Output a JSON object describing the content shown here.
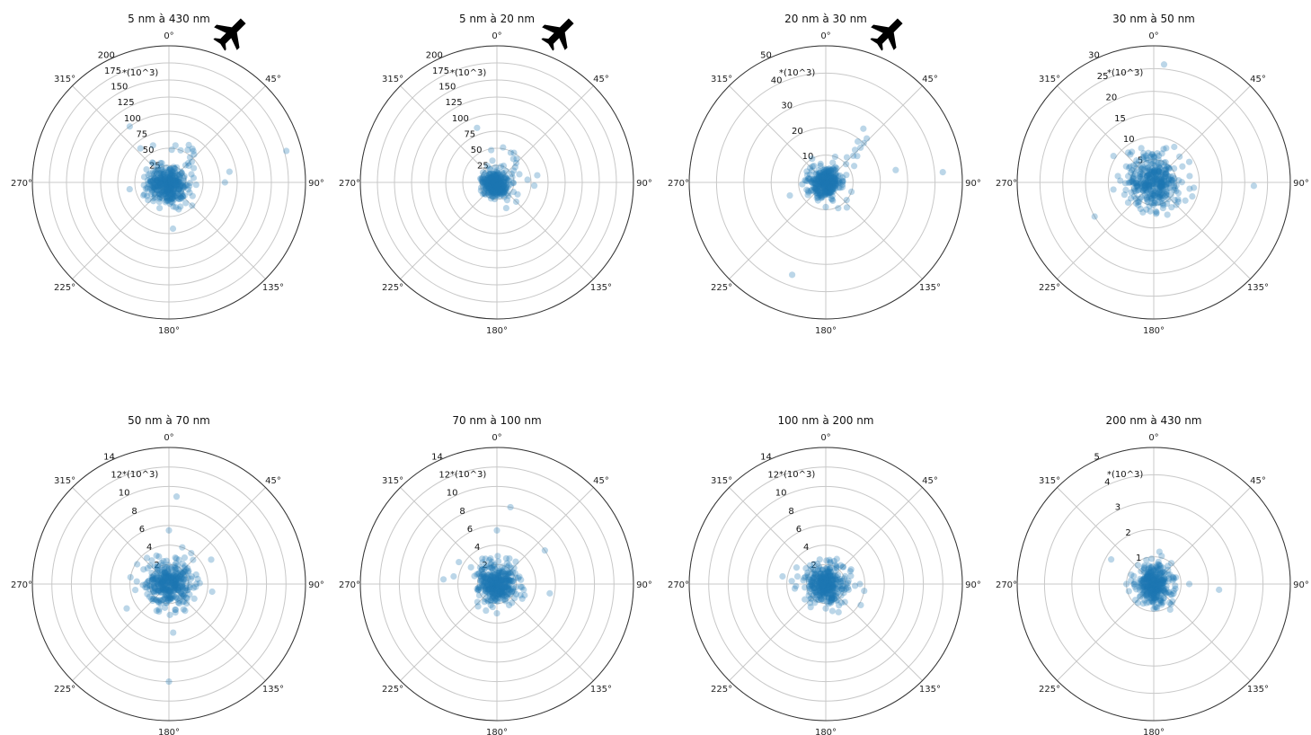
{
  "figure": {
    "subplot_count": 8
  },
  "icons": [
    {
      "name": "airplane-icon",
      "panel": 0
    },
    {
      "name": "airplane-icon",
      "panel": 1
    },
    {
      "name": "airplane-icon",
      "panel": 2
    }
  ],
  "colors": {
    "points": "#1f77b4",
    "grid": "#c8c8c8",
    "frame": "#333333",
    "icon": "#000000"
  },
  "chart_data": [
    {
      "type": "scatter",
      "projection": "polar",
      "title": "5 nm à 430 nm",
      "multiplier_label": "*(10^3)",
      "theta_tick_labels": [
        "0°",
        "45°",
        "90°",
        "135°",
        "180°",
        "225°",
        "270°",
        "315°"
      ],
      "r_ticks": [
        25,
        50,
        75,
        100,
        125,
        150,
        175,
        200
      ],
      "rlim": [
        0,
        200
      ],
      "grid": true,
      "point_alpha": 0.3,
      "cluster": {
        "center_theta_deg": 210,
        "center_r": 4,
        "spread_r": 25
      },
      "series": [
        {
          "points": [
            {
              "theta": 45,
              "r": 40
            },
            {
              "theta": 42,
              "r": 55
            },
            {
              "theta": 38,
              "r": 58
            },
            {
              "theta": 35,
              "r": 60
            },
            {
              "theta": 48,
              "r": 45
            },
            {
              "theta": 40,
              "r": 48
            },
            {
              "theta": 30,
              "r": 55
            },
            {
              "theta": 28,
              "r": 62
            },
            {
              "theta": 44,
              "r": 35
            },
            {
              "theta": 50,
              "r": 38
            },
            {
              "theta": 20,
              "r": 50
            },
            {
              "theta": 10,
              "r": 55
            },
            {
              "theta": 5,
              "r": 48
            },
            {
              "theta": 60,
              "r": 42
            },
            {
              "theta": 70,
              "r": 35
            },
            {
              "theta": 75,
              "r": 178
            },
            {
              "theta": -35,
              "r": 100
            },
            {
              "theta": -40,
              "r": 65
            },
            {
              "theta": -60,
              "r": 38
            },
            {
              "theta": 80,
              "r": 90
            },
            {
              "theta": 90,
              "r": 82
            },
            {
              "theta": 95,
              "r": 40
            },
            {
              "theta": 120,
              "r": 40
            },
            {
              "theta": 135,
              "r": 48
            },
            {
              "theta": 160,
              "r": 42
            },
            {
              "theta": 175,
              "r": 68
            },
            {
              "theta": 170,
              "r": 30
            },
            {
              "theta": 200,
              "r": 40
            },
            {
              "theta": 230,
              "r": 40
            },
            {
              "theta": 240,
              "r": 28
            },
            {
              "theta": 255,
              "r": 35
            },
            {
              "theta": 290,
              "r": 32
            },
            {
              "theta": 300,
              "r": 25
            },
            {
              "theta": 320,
              "r": 38
            },
            {
              "theta": 340,
              "r": 30
            },
            {
              "theta": 350,
              "r": 22
            },
            {
              "theta": 100,
              "r": 25
            },
            {
              "theta": 110,
              "r": 30
            },
            {
              "theta": 150,
              "r": 28
            },
            {
              "theta": 190,
              "r": 22
            }
          ]
        }
      ]
    },
    {
      "type": "scatter",
      "projection": "polar",
      "title": "5 nm à 20 nm",
      "multiplier_label": "*(10^3)",
      "theta_tick_labels": [
        "0°",
        "45°",
        "90°",
        "135°",
        "180°",
        "225°",
        "270°",
        "315°"
      ],
      "r_ticks": [
        25,
        50,
        75,
        100,
        125,
        150,
        175,
        200
      ],
      "rlim": [
        0,
        200
      ],
      "grid": true,
      "point_alpha": 0.3,
      "cluster": {
        "center_theta_deg": 225,
        "center_r": 3,
        "spread_r": 16
      },
      "series": [
        {
          "points": [
            {
              "theta": 45,
              "r": 40
            },
            {
              "theta": 40,
              "r": 45
            },
            {
              "theta": 35,
              "r": 42
            },
            {
              "theta": 50,
              "r": 35
            },
            {
              "theta": 30,
              "r": 50
            },
            {
              "theta": 25,
              "r": 48
            },
            {
              "theta": 55,
              "r": 30
            },
            {
              "theta": -20,
              "r": 85
            },
            {
              "theta": 10,
              "r": 52
            },
            {
              "theta": -10,
              "r": 48
            },
            {
              "theta": 80,
              "r": 60
            },
            {
              "theta": 85,
              "r": 45
            },
            {
              "theta": 95,
              "r": 55
            },
            {
              "theta": 120,
              "r": 35
            },
            {
              "theta": 135,
              "r": 40
            },
            {
              "theta": 160,
              "r": 40
            },
            {
              "theta": 150,
              "r": 30
            },
            {
              "theta": 200,
              "r": 25
            },
            {
              "theta": 210,
              "r": 22
            },
            {
              "theta": 250,
              "r": 20
            },
            {
              "theta": 300,
              "r": 22
            },
            {
              "theta": 330,
              "r": 28
            },
            {
              "theta": 60,
              "r": 25
            },
            {
              "theta": 70,
              "r": 35
            }
          ]
        }
      ]
    },
    {
      "type": "scatter",
      "projection": "polar",
      "title": "20 nm à 30 nm",
      "multiplier_label": "*(10^3)",
      "theta_tick_labels": [
        "0°",
        "45°",
        "90°",
        "135°",
        "180°",
        "225°",
        "270°",
        "315°"
      ],
      "r_ticks": [
        10,
        20,
        30,
        40,
        50
      ],
      "rlim": [
        0,
        50
      ],
      "grid": true,
      "point_alpha": 0.3,
      "cluster": {
        "center_theta_deg": 0,
        "center_r": 0,
        "spread_r": 5
      },
      "series": [
        {
          "points": [
            {
              "theta": 45,
              "r": 18
            },
            {
              "theta": 44,
              "r": 20
            },
            {
              "theta": 43,
              "r": 22
            },
            {
              "theta": 42,
              "r": 16
            },
            {
              "theta": 46,
              "r": 14
            },
            {
              "theta": 40,
              "r": 12
            },
            {
              "theta": 48,
              "r": 10
            },
            {
              "theta": 35,
              "r": 24
            },
            {
              "theta": 38,
              "r": 19
            },
            {
              "theta": 50,
              "r": 15
            },
            {
              "theta": 85,
              "r": 43
            },
            {
              "theta": 80,
              "r": 26
            },
            {
              "theta": 110,
              "r": 10
            },
            {
              "theta": 130,
              "r": 10
            },
            {
              "theta": 140,
              "r": 12
            },
            {
              "theta": 180,
              "r": 9
            },
            {
              "theta": 200,
              "r": 36
            },
            {
              "theta": 250,
              "r": 14
            },
            {
              "theta": 235,
              "r": 8
            },
            {
              "theta": 300,
              "r": 8
            },
            {
              "theta": 330,
              "r": 10
            },
            {
              "theta": 20,
              "r": 10
            },
            {
              "theta": 60,
              "r": 12
            },
            {
              "theta": 70,
              "r": 8
            }
          ]
        }
      ]
    },
    {
      "type": "scatter",
      "projection": "polar",
      "title": "30 nm à 50 nm",
      "multiplier_label": "*(10^3)",
      "theta_tick_labels": [
        "0°",
        "45°",
        "90°",
        "135°",
        "180°",
        "225°",
        "270°",
        "315°"
      ],
      "r_ticks": [
        5,
        10,
        15,
        20,
        25,
        30
      ],
      "rlim": [
        0,
        30
      ],
      "grid": true,
      "point_alpha": 0.3,
      "cluster": {
        "center_theta_deg": 0,
        "center_r": 0,
        "spread_r": 5
      },
      "series": [
        {
          "points": [
            {
              "theta": 5,
              "r": 26
            },
            {
              "theta": 240,
              "r": 15
            },
            {
              "theta": 92,
              "r": 22
            },
            {
              "theta": 45,
              "r": 8
            },
            {
              "theta": 60,
              "r": 9
            },
            {
              "theta": 80,
              "r": 8
            },
            {
              "theta": 100,
              "r": 8
            },
            {
              "theta": 120,
              "r": 8
            },
            {
              "theta": 135,
              "r": 7
            },
            {
              "theta": 160,
              "r": 6
            },
            {
              "theta": 200,
              "r": 7
            },
            {
              "theta": 220,
              "r": 6
            },
            {
              "theta": 260,
              "r": 9
            },
            {
              "theta": 280,
              "r": 8
            },
            {
              "theta": 300,
              "r": 7
            },
            {
              "theta": 320,
              "r": 8
            },
            {
              "theta": 340,
              "r": 8
            },
            {
              "theta": 20,
              "r": 8
            },
            {
              "theta": 30,
              "r": 9
            },
            {
              "theta": 110,
              "r": 9
            }
          ]
        }
      ]
    },
    {
      "type": "scatter",
      "projection": "polar",
      "title": "50 nm à 70 nm",
      "multiplier_label": "*(10^3)",
      "theta_tick_labels": [
        "0°",
        "45°",
        "90°",
        "135°",
        "180°",
        "225°",
        "270°",
        "315°"
      ],
      "r_ticks": [
        2,
        4,
        6,
        8,
        10,
        12,
        14
      ],
      "rlim": [
        0,
        14
      ],
      "grid": true,
      "point_alpha": 0.3,
      "cluster": {
        "center_theta_deg": 0,
        "center_r": 0,
        "spread_r": 2.0
      },
      "series": [
        {
          "points": [
            {
              "theta": 5,
              "r": 9
            },
            {
              "theta": 180,
              "r": 10
            },
            {
              "theta": 60,
              "r": 5
            },
            {
              "theta": 100,
              "r": 4.5
            },
            {
              "theta": 175,
              "r": 5
            },
            {
              "theta": 240,
              "r": 5
            },
            {
              "theta": 280,
              "r": 4
            },
            {
              "theta": 320,
              "r": 3.5
            },
            {
              "theta": 20,
              "r": 4
            },
            {
              "theta": 45,
              "r": 3.5
            },
            {
              "theta": 80,
              "r": 3
            },
            {
              "theta": 120,
              "r": 3
            },
            {
              "theta": 150,
              "r": 3
            },
            {
              "theta": 200,
              "r": 3
            },
            {
              "theta": 260,
              "r": 3.5
            },
            {
              "theta": 300,
              "r": 3
            },
            {
              "theta": 340,
              "r": 3
            },
            {
              "theta": 0,
              "r": 5.5
            }
          ]
        }
      ]
    },
    {
      "type": "scatter",
      "projection": "polar",
      "title": "70 nm à 100 nm",
      "multiplier_label": "*(10^3)",
      "theta_tick_labels": [
        "0°",
        "45°",
        "90°",
        "135°",
        "180°",
        "225°",
        "270°",
        "315°"
      ],
      "r_ticks": [
        2,
        4,
        6,
        8,
        10,
        12,
        14
      ],
      "rlim": [
        0,
        14
      ],
      "grid": true,
      "point_alpha": 0.3,
      "cluster": {
        "center_theta_deg": 0,
        "center_r": 0,
        "spread_r": 1.8
      },
      "series": [
        {
          "points": [
            {
              "theta": 10,
              "r": 8
            },
            {
              "theta": 0,
              "r": 5.5
            },
            {
              "theta": 55,
              "r": 6
            },
            {
              "theta": 100,
              "r": 5.5
            },
            {
              "theta": 275,
              "r": 5.5
            },
            {
              "theta": 280,
              "r": 4.5
            },
            {
              "theta": 300,
              "r": 4.5
            },
            {
              "theta": 220,
              "r": 3
            },
            {
              "theta": 180,
              "r": 3
            },
            {
              "theta": 150,
              "r": 2.5
            },
            {
              "theta": 120,
              "r": 3
            },
            {
              "theta": 80,
              "r": 2.5
            },
            {
              "theta": 40,
              "r": 3
            },
            {
              "theta": 330,
              "r": 3
            },
            {
              "theta": 20,
              "r": 2.8
            }
          ]
        }
      ]
    },
    {
      "type": "scatter",
      "projection": "polar",
      "title": "100 nm à 200 nm",
      "multiplier_label": "*(10^3)",
      "theta_tick_labels": [
        "0°",
        "45°",
        "90°",
        "135°",
        "180°",
        "225°",
        "270°",
        "315°"
      ],
      "r_ticks": [
        2,
        4,
        6,
        8,
        10,
        12,
        14
      ],
      "rlim": [
        0,
        14
      ],
      "grid": true,
      "point_alpha": 0.3,
      "cluster": {
        "center_theta_deg": 0,
        "center_r": 0,
        "spread_r": 1.8
      },
      "series": [
        {
          "points": [
            {
              "theta": 100,
              "r": 4
            },
            {
              "theta": 90,
              "r": 3.5
            },
            {
              "theta": 280,
              "r": 4.5
            },
            {
              "theta": 275,
              "r": 3.5
            },
            {
              "theta": 285,
              "r": 3
            },
            {
              "theta": 60,
              "r": 3
            },
            {
              "theta": 45,
              "r": 2.5
            },
            {
              "theta": 20,
              "r": 2.5
            },
            {
              "theta": 180,
              "r": 2.5
            },
            {
              "theta": 220,
              "r": 2.5
            },
            {
              "theta": 320,
              "r": 2.5
            },
            {
              "theta": 140,
              "r": 2.5
            }
          ]
        }
      ]
    },
    {
      "type": "scatter",
      "projection": "polar",
      "title": "200 nm à 430 nm",
      "multiplier_label": "*(10^3)",
      "theta_tick_labels": [
        "0°",
        "45°",
        "90°",
        "135°",
        "180°",
        "225°",
        "270°",
        "315°"
      ],
      "r_ticks": [
        1,
        2,
        3,
        4,
        5
      ],
      "rlim": [
        0,
        5
      ],
      "grid": true,
      "point_alpha": 0.3,
      "cluster": {
        "center_theta_deg": 0,
        "center_r": 0,
        "spread_r": 0.6
      },
      "series": [
        {
          "points": [
            {
              "theta": 300,
              "r": 1.8
            },
            {
              "theta": 95,
              "r": 2.4
            },
            {
              "theta": 90,
              "r": 1.3
            },
            {
              "theta": 10,
              "r": 1.2
            },
            {
              "theta": 40,
              "r": 1.0
            },
            {
              "theta": 270,
              "r": 1.0
            },
            {
              "theta": 180,
              "r": 0.9
            },
            {
              "theta": 220,
              "r": 0.9
            },
            {
              "theta": 140,
              "r": 0.9
            },
            {
              "theta": 320,
              "r": 0.9
            }
          ]
        }
      ]
    }
  ]
}
